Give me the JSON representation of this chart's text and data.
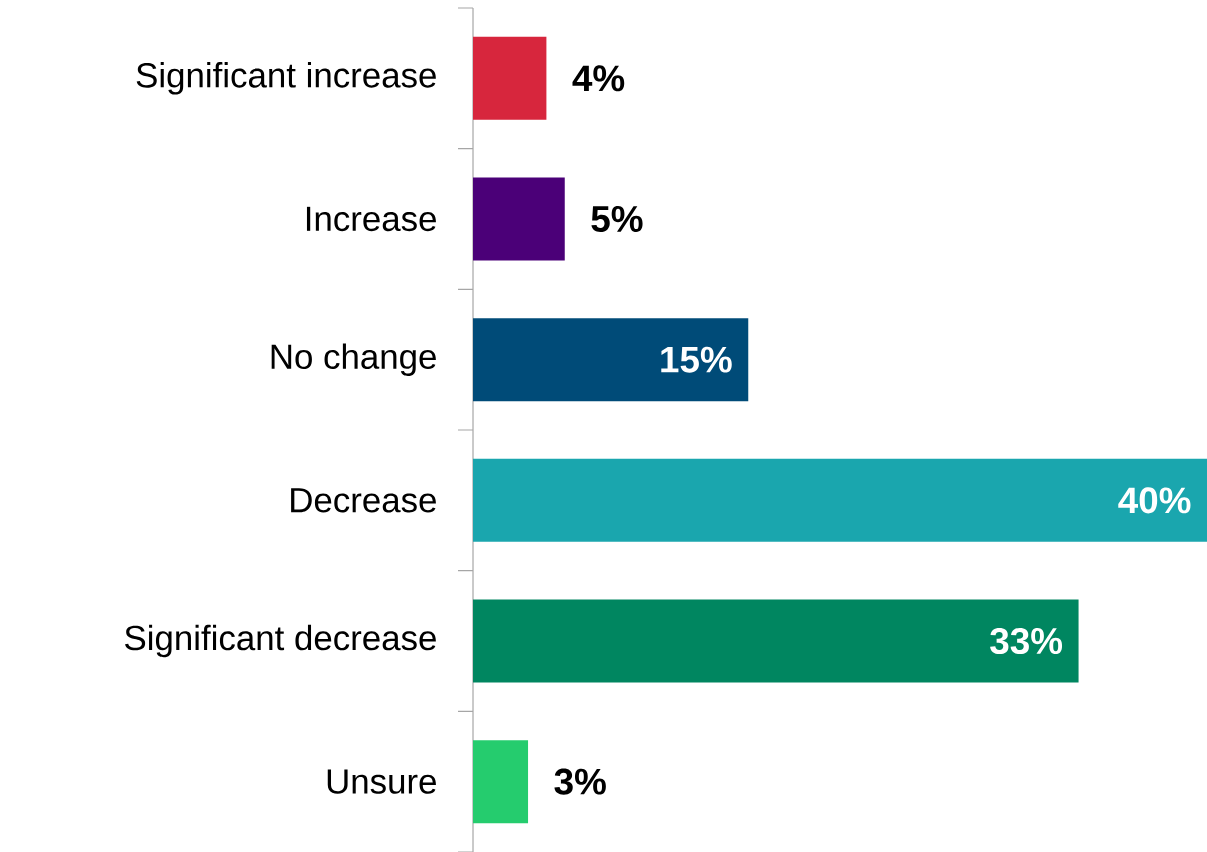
{
  "chart_data": {
    "type": "bar",
    "orientation": "horizontal",
    "tick_labels": "y",
    "categories": [
      "Significant increase",
      "Increase",
      "No change",
      "Decrease",
      "Significant decrease",
      "Unsure"
    ],
    "values": [
      4,
      5,
      15,
      40,
      33,
      3
    ],
    "value_labels": [
      "4%",
      "5%",
      "15%",
      "40%",
      "33%",
      "3%"
    ],
    "colors": [
      "#d7263d",
      "#4b0078",
      "#004b78",
      "#1aa6ae",
      "#008660",
      "#25cc6e"
    ]
  }
}
